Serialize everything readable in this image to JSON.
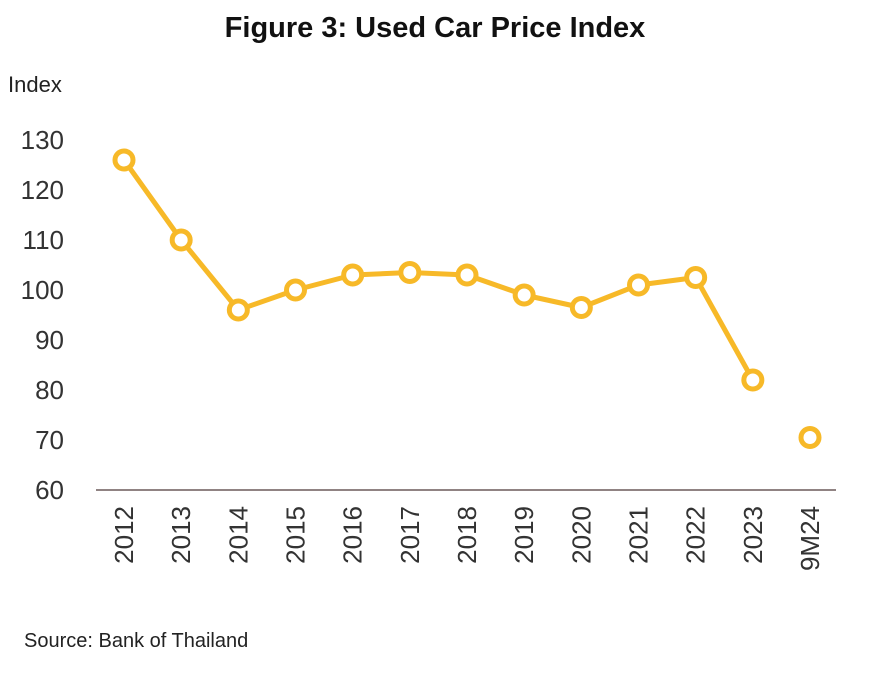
{
  "title": "Figure 3: Used Car Price Index",
  "source": "Source: Bank of Thailand",
  "chart_data": {
    "type": "line",
    "title": "Figure 3: Used Car Price Index",
    "ylabel": "Index",
    "xlabel": "",
    "categories": [
      "2012",
      "2013",
      "2014",
      "2015",
      "2016",
      "2017",
      "2018",
      "2019",
      "2020",
      "2021",
      "2022",
      "2023",
      "9M24"
    ],
    "series": [
      {
        "values": [
          126,
          110,
          96,
          100,
          103,
          103.5,
          103,
          99,
          96.5,
          101,
          102.5,
          82,
          null
        ]
      },
      {
        "values": [
          null,
          null,
          null,
          null,
          null,
          null,
          null,
          null,
          null,
          null,
          null,
          null,
          70.5
        ]
      }
    ],
    "ylim": [
      60,
      130
    ],
    "yticks": [
      "60",
      "70",
      "80",
      "90",
      "100",
      "110",
      "120",
      "130"
    ],
    "grid": false,
    "legend": "none",
    "colors": {
      "line": "#F7B928",
      "marker_fill": "#ffffff",
      "axis": "#6b5a5a"
    }
  }
}
